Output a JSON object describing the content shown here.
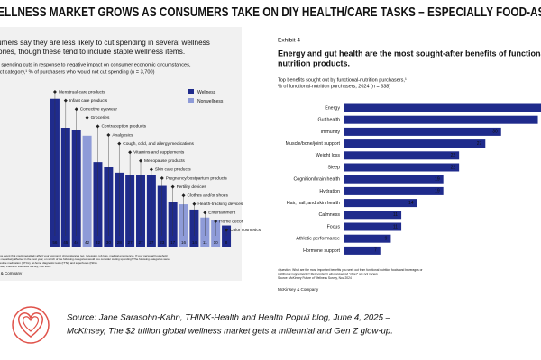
{
  "header": {
    "title": "WELLNESS MARKET GROWS AS CONSUMERS TAKE ON DIY HEALTH/CARE TASKS – ESPECIALLY FOOD-AS-ME"
  },
  "chart_data": [
    {
      "type": "bar",
      "title": [
        "Consumers say they are less likely to cut spending in several wellness",
        "categories, though these tend to include staple wellness items."
      ],
      "subtitle": [
        "Potential spending cuts in response to negative impact on consumer economic circumstances,",
        "by product category,¹ % of purchasers who would not cut spending (n = 3,700)"
      ],
      "categories": [
        "Menstrual-care products",
        "Infant care products",
        "Corrective eyewear",
        "Groceries",
        "Contraception products",
        "Analgesics",
        "Cough, cold, and allergy medications",
        "Vitamins and supplements",
        "Menopause products",
        "Skin care products",
        "Pregnancy/postpartum products",
        "Fertility devices",
        "Clothes and/or shoes",
        "Health-tracking devices",
        "Entertainment",
        "Home decor",
        "Color cosmetics"
      ],
      "series": [
        {
          "name": "Wellness",
          "color": "#1f2b8c",
          "values": [
            56,
            45,
            44,
            null,
            32,
            30,
            28,
            27,
            27,
            27,
            23,
            17,
            null,
            14,
            null,
            null,
            8
          ]
        },
        {
          "name": "Nonwellness",
          "color": "#8e9bd8",
          "values": [
            null,
            null,
            null,
            42,
            null,
            null,
            null,
            null,
            null,
            null,
            null,
            null,
            16,
            null,
            11,
            10,
            null
          ]
        }
      ],
      "ylim": [
        0,
        60
      ],
      "footnote": [
        "¹Q: If a negative event that could negatively affect your economic circumstances (eg, recession, job loss, medical emergency). If your personal household",
        "finances were negatively affected in the next year, on which of the following categories would you consider cutting spending? The following categories were",
        "analyzed: digestive medication (OTCs), at-home diagnostic tests (ITTs), and superfoods (ISFs).",
        "Source: McKinsey Future of Wellness Survey, Nov 2024"
      ],
      "brand": "McKinsey & Company"
    },
    {
      "type": "barh",
      "exhibit": "Exhibit 4",
      "title": [
        "Energy and gut health are the most sought-after benefits of functional",
        "nutrition products."
      ],
      "subtitle": [
        "Top benefits sought out by functional-nutrition purchasers,¹",
        "% of functional-nutrition purchasers, 2024 (n = 638)"
      ],
      "categories": [
        "Energy",
        "Gut health",
        "Immunity",
        "Muscle/bone/joint support",
        "Weight loss",
        "Sleep",
        "Cognition/brain health",
        "Hydration",
        "Hair, nail, and skin health",
        "Calmness",
        "Focus",
        "Athletic performance",
        "Hormone support"
      ],
      "values": [
        40,
        37,
        30,
        27,
        22,
        22,
        19,
        19,
        14,
        11,
        11,
        9,
        7
      ],
      "value_labels": [
        null,
        null,
        "30",
        "27",
        "22",
        "22",
        "19",
        "19",
        "14",
        "11",
        "11",
        "9",
        "7"
      ],
      "color": "#1f2b8c",
      "xlim": [
        0,
        40
      ],
      "footnote": [
        "¹Question: What are the most important benefits you seek out from functional nutrition foods and beverages or",
        "nutritional supplements? Respondents who answered \"other\" are not shown.",
        "Source: McKinsey Future of Wellness Survey, Nov 2024"
      ],
      "brand": "McKinsey & Company"
    }
  ],
  "source": [
    "Source: Jane Sarasohn-Kahn, THINK-Health and Health Populi blog, June 4, 2025 –",
    "McKinsey, The $2 trillion global wellness market gets a millennial and Gen Z glow-up."
  ]
}
